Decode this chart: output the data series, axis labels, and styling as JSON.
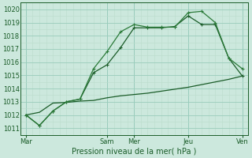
{
  "xlabel": "Pression niveau de la mer( hPa )",
  "bg_color": "#cce8dd",
  "grid_color_major": "#99ccbb",
  "grid_color_minor": "#bbddcc",
  "line_color_dark": "#1a5c28",
  "line_color_mid": "#2a7a38",
  "ylim": [
    1010.5,
    1020.5
  ],
  "yticks": [
    1011,
    1012,
    1013,
    1014,
    1015,
    1016,
    1017,
    1018,
    1019,
    1020
  ],
  "xlim": [
    -0.2,
    8.2
  ],
  "day_labels": [
    "Mar",
    "Sam",
    "Mer",
    "Jeu",
    "Ven"
  ],
  "day_positions": [
    0,
    3,
    4,
    6,
    8
  ],
  "vline_positions": [
    0,
    3,
    4,
    6,
    8
  ],
  "series1_x": [
    0,
    0.5,
    1,
    1.5,
    2,
    2.5,
    3,
    3.5,
    4,
    4.5,
    5,
    5.5,
    6,
    6.5,
    7,
    7.5,
    8
  ],
  "series1_y": [
    1012.0,
    1011.2,
    1012.3,
    1013.0,
    1013.2,
    1015.5,
    1016.8,
    1018.3,
    1018.85,
    1018.65,
    1018.65,
    1018.65,
    1019.75,
    1019.85,
    1019.0,
    1016.3,
    1015.5
  ],
  "series2_x": [
    0,
    0.5,
    1,
    1.5,
    2,
    2.5,
    3,
    3.5,
    4,
    4.5,
    5,
    5.5,
    6,
    6.5,
    7,
    7.5,
    8
  ],
  "series2_y": [
    1012.0,
    1011.2,
    1012.3,
    1013.0,
    1013.2,
    1015.2,
    1015.8,
    1017.1,
    1018.6,
    1018.6,
    1018.6,
    1018.7,
    1019.5,
    1018.85,
    1018.85,
    1016.3,
    1014.95
  ],
  "series3_x": [
    0,
    0.5,
    1,
    1.5,
    2,
    2.5,
    3,
    3.5,
    4,
    4.5,
    5,
    5.5,
    6,
    6.5,
    7,
    7.5,
    8
  ],
  "series3_y": [
    1012.0,
    1012.2,
    1012.9,
    1012.95,
    1013.05,
    1013.1,
    1013.3,
    1013.45,
    1013.55,
    1013.65,
    1013.8,
    1013.95,
    1014.1,
    1014.3,
    1014.5,
    1014.7,
    1014.95
  ]
}
